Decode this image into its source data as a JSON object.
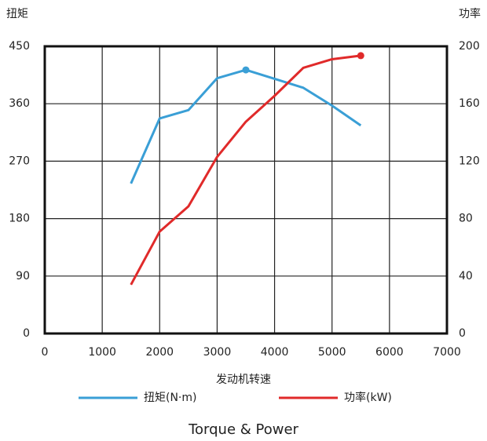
{
  "chart_data": {
    "type": "line",
    "title": "Torque & Power",
    "xlabel": "发动机转速",
    "ylabel": "扭矩",
    "y2label": "功率",
    "x": [
      1500,
      2000,
      2500,
      3000,
      3500,
      4000,
      4500,
      5000,
      5500
    ],
    "series": [
      {
        "name": "扭矩(N·m)",
        "color": "#3a9fd6",
        "values": [
          235,
          337,
          350,
          400,
          413,
          399,
          385,
          357,
          326
        ],
        "marker_index": 4
      },
      {
        "name": "功率(kW)",
        "color": "#e02a2a",
        "axis": "y2",
        "values": [
          34,
          71,
          88.5,
          123,
          147.5,
          165.5,
          185,
          191,
          193.5
        ],
        "marker_index": 8
      }
    ],
    "xlim": [
      0,
      7000
    ],
    "xticks": [
      0,
      1000,
      2000,
      3000,
      4000,
      5000,
      6000,
      7000
    ],
    "ylim": [
      0,
      450
    ],
    "yticks": [
      0,
      90,
      180,
      270,
      360,
      450
    ],
    "y2lim": [
      0,
      200
    ],
    "y2ticks": [
      0,
      40,
      80,
      120,
      160,
      200
    ],
    "grid": true
  }
}
